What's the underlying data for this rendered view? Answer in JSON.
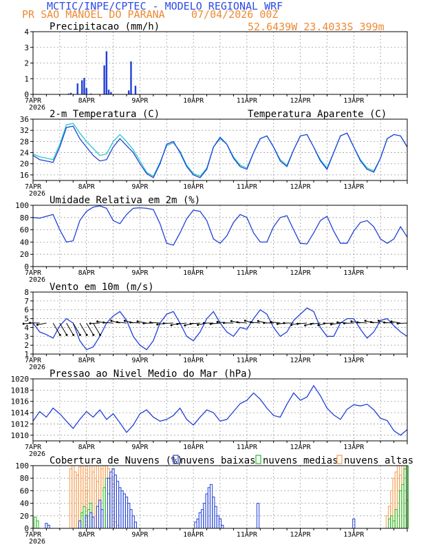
{
  "header": {
    "model_title": "MCTIC/INPE/CPTEC - MODELO REGIONAL WRF",
    "location": "PR SAO MANOEL DO PARANA",
    "run_time": "07/04/2026 00Z",
    "coords": "52.6439W 23.4033S 399m"
  },
  "colors": {
    "blue": "#1f3fd8",
    "cyan": "#22c8c8",
    "green": "#22bb22",
    "orange": "#f59a4a",
    "title_blue": "#2b4be6",
    "title_orange": "#ee8a33"
  },
  "x_axis": {
    "start_date_label": "7APR",
    "year_label": "2026",
    "days": [
      "7APR",
      "8APR",
      "9APR",
      "10APR",
      "11APR",
      "12APR",
      "13APR"
    ],
    "range_hours": [
      0,
      168
    ]
  },
  "chart_data": [
    {
      "type": "bar",
      "title": "Precipitacao (mm/h)",
      "ylim": [
        0,
        4
      ],
      "yticks": [
        0,
        1,
        2,
        3,
        4
      ],
      "x_hours": [
        16,
        17,
        20,
        22,
        23,
        24,
        26,
        32,
        33,
        34,
        35,
        43,
        44,
        46
      ],
      "values": [
        0.05,
        0.1,
        0.7,
        0.9,
        1.05,
        0.4,
        0.05,
        1.85,
        2.75,
        0.3,
        0.15,
        0.25,
        2.1,
        0.55
      ]
    },
    {
      "type": "line",
      "title": "2-m Temperatura (C)",
      "legend": "Temperatura Aparente (C)",
      "ylim": [
        14,
        36
      ],
      "yticks": [
        16,
        20,
        24,
        28,
        32,
        36
      ],
      "series": [
        {
          "color": "blue",
          "x": [
            0,
            3,
            6,
            9,
            12,
            15,
            18,
            21,
            24,
            27,
            30,
            33,
            36,
            39,
            42,
            45,
            48,
            51,
            54,
            57,
            60,
            63,
            66,
            69,
            72,
            75,
            78,
            81,
            84,
            87,
            90,
            93,
            96,
            99,
            102,
            105,
            108,
            111,
            114,
            117,
            120,
            123,
            126,
            129,
            132,
            135,
            138,
            141,
            144,
            147,
            150,
            153,
            156,
            159,
            162,
            165,
            168
          ],
          "values": [
            23,
            21.5,
            21,
            20.5,
            26,
            33,
            33.5,
            29,
            26,
            23,
            21,
            21.5,
            26,
            29,
            26.5,
            24,
            20,
            16.5,
            15,
            20,
            27,
            28,
            24,
            19,
            16,
            15,
            18,
            26,
            29.5,
            27,
            22,
            19,
            18,
            24,
            29,
            30,
            26,
            21,
            19,
            25,
            30,
            30.5,
            26,
            21,
            18,
            24,
            30,
            31,
            26,
            21,
            18,
            17,
            22,
            29,
            30.5,
            30,
            26
          ]
        },
        {
          "color": "cyan",
          "x": [
            0,
            3,
            6,
            9,
            12,
            15,
            18,
            21,
            24,
            27,
            30,
            33,
            36,
            39,
            42,
            45,
            48,
            51,
            54,
            57,
            60,
            63,
            66,
            69,
            72,
            75,
            78,
            81,
            84,
            87,
            90,
            93,
            96,
            99,
            102,
            105,
            108,
            111,
            114,
            117,
            120,
            123,
            126,
            129,
            132,
            135,
            138,
            141,
            144,
            147,
            150,
            153,
            156,
            159,
            162,
            165,
            168
          ],
          "values": [
            23.5,
            22.5,
            22,
            21.5,
            27,
            34,
            34.5,
            31,
            28,
            25.5,
            23,
            23.5,
            28,
            30.5,
            28,
            25,
            21,
            17,
            15.5,
            20.5,
            26.5,
            27.5,
            24.5,
            19.5,
            16.5,
            15.5,
            18.5,
            26,
            29,
            27,
            22.5,
            19.5,
            18.5,
            24,
            29,
            30,
            26,
            21.5,
            19.5,
            25,
            30,
            30.5,
            26,
            21.5,
            18.5,
            24,
            30,
            31,
            26,
            21.5,
            18.5,
            17.5,
            22,
            29,
            30.5,
            30,
            26
          ]
        }
      ]
    },
    {
      "type": "line",
      "title": "Umidade Relativa em 2m (%)",
      "ylim": [
        0,
        100
      ],
      "yticks": [
        0,
        20,
        40,
        60,
        80,
        100
      ],
      "series": [
        {
          "color": "blue",
          "x": [
            0,
            3,
            6,
            9,
            12,
            15,
            18,
            21,
            24,
            27,
            30,
            33,
            36,
            39,
            42,
            45,
            48,
            51,
            54,
            57,
            60,
            63,
            66,
            69,
            72,
            75,
            78,
            81,
            84,
            87,
            90,
            93,
            96,
            99,
            102,
            105,
            108,
            111,
            114,
            117,
            120,
            123,
            126,
            129,
            132,
            135,
            138,
            141,
            144,
            147,
            150,
            153,
            156,
            159,
            162,
            165,
            168
          ],
          "values": [
            80,
            79,
            82,
            85,
            60,
            40,
            42,
            75,
            90,
            97,
            99,
            95,
            75,
            70,
            85,
            95,
            96,
            95,
            93,
            70,
            38,
            35,
            55,
            78,
            92,
            90,
            75,
            45,
            38,
            50,
            72,
            85,
            80,
            55,
            40,
            40,
            65,
            80,
            83,
            60,
            38,
            37,
            55,
            75,
            82,
            58,
            38,
            38,
            58,
            72,
            75,
            65,
            45,
            38,
            45,
            65,
            48
          ]
        }
      ]
    },
    {
      "type": "line",
      "title": "Vento em 10m (m/s)",
      "ylim": [
        1,
        8
      ],
      "yticks": [
        1,
        2,
        3,
        4,
        5,
        6,
        7,
        8
      ],
      "series": [
        {
          "color": "blue",
          "x": [
            0,
            3,
            6,
            9,
            12,
            15,
            18,
            21,
            24,
            27,
            30,
            33,
            36,
            39,
            42,
            45,
            48,
            51,
            54,
            57,
            60,
            63,
            66,
            69,
            72,
            75,
            78,
            81,
            84,
            87,
            90,
            93,
            96,
            99,
            102,
            105,
            108,
            111,
            114,
            117,
            120,
            123,
            126,
            129,
            132,
            135,
            138,
            141,
            144,
            147,
            150,
            153,
            156,
            159,
            162,
            165,
            168
          ],
          "values": [
            4.5,
            3.5,
            3.2,
            2.8,
            4.2,
            5.0,
            4.5,
            2.5,
            1.5,
            1.8,
            3.0,
            4.5,
            5.3,
            5.8,
            4.8,
            3.0,
            2.0,
            1.5,
            2.5,
            4.5,
            5.5,
            5.8,
            4.5,
            3.0,
            2.5,
            3.5,
            5.0,
            5.8,
            4.5,
            3.5,
            3.0,
            4.0,
            3.8,
            5.0,
            6.0,
            5.5,
            4.0,
            3.0,
            3.5,
            4.8,
            5.5,
            6.2,
            5.8,
            4.0,
            3.0,
            3.0,
            4.5,
            5.0,
            5.0,
            3.8,
            2.8,
            3.5,
            4.8,
            5.0,
            4.2,
            3.5,
            3.0
          ]
        }
      ]
    },
    {
      "type": "line",
      "title": "Pressao ao Nivel Medio do Mar (hPa)",
      "ylim": [
        1009,
        1020
      ],
      "yticks": [
        1010,
        1012,
        1014,
        1016,
        1018,
        1020
      ],
      "series": [
        {
          "color": "blue",
          "x": [
            0,
            3,
            6,
            9,
            12,
            15,
            18,
            21,
            24,
            27,
            30,
            33,
            36,
            39,
            42,
            45,
            48,
            51,
            54,
            57,
            60,
            63,
            66,
            69,
            72,
            75,
            78,
            81,
            84,
            87,
            90,
            93,
            96,
            99,
            102,
            105,
            108,
            111,
            114,
            117,
            120,
            123,
            126,
            129,
            132,
            135,
            138,
            141,
            144,
            147,
            150,
            153,
            156,
            159,
            162,
            165,
            168
          ],
          "values": [
            1012.5,
            1014.2,
            1013.2,
            1014.8,
            1013.8,
            1012.5,
            1011.2,
            1012.8,
            1014.2,
            1013.2,
            1014.5,
            1012.8,
            1013.8,
            1012.2,
            1010.5,
            1011.8,
            1013.8,
            1014.5,
            1013.2,
            1012.5,
            1012.8,
            1013.5,
            1014.8,
            1012.8,
            1011.8,
            1013.2,
            1014.5,
            1014.0,
            1012.5,
            1012.8,
            1014.2,
            1015.6,
            1016.2,
            1017.5,
            1016.4,
            1014.8,
            1013.5,
            1013.2,
            1015.5,
            1017.5,
            1016.2,
            1016.8,
            1018.8,
            1017.0,
            1014.8,
            1013.6,
            1012.8,
            1014.6,
            1015.4,
            1015.2,
            1015.5,
            1014.5,
            1013.0,
            1012.6,
            1010.8,
            1010.0,
            1011.0
          ]
        }
      ]
    },
    {
      "type": "bar",
      "title": "Cobertura de Nuvens (%)",
      "legend": [
        "nuvens baixas",
        "nuvens medias",
        "nuvens altas"
      ],
      "ylim": [
        0,
        100
      ],
      "yticks": [
        0,
        20,
        40,
        60,
        80,
        100
      ],
      "series": [
        {
          "name": "nuvens altas",
          "color": "orange",
          "x": [
            17,
            18,
            19,
            20,
            21,
            22,
            23,
            24,
            25,
            26,
            27,
            28,
            29,
            30,
            31,
            32,
            33,
            34,
            35,
            36,
            37,
            38,
            159,
            160,
            161,
            162,
            163,
            164,
            165,
            166,
            167,
            168
          ],
          "values": [
            95,
            100,
            90,
            85,
            98,
            100,
            100,
            60,
            100,
            100,
            90,
            100,
            75,
            100,
            95,
            100,
            100,
            95,
            80,
            70,
            10,
            5,
            20,
            35,
            60,
            80,
            90,
            100,
            85,
            100,
            100,
            45
          ]
        },
        {
          "name": "nuvens medias",
          "color": "green",
          "x": [
            1,
            2,
            22,
            23,
            25,
            26,
            32,
            33,
            34,
            160,
            161,
            162,
            163,
            165,
            166,
            167,
            168
          ],
          "values": [
            18,
            12,
            25,
            35,
            30,
            40,
            65,
            80,
            55,
            15,
            20,
            12,
            30,
            60,
            70,
            95,
            100
          ]
        },
        {
          "name": "nuvens baixas",
          "color": "blue",
          "x": [
            6,
            7,
            21,
            24,
            26,
            27,
            29,
            30,
            31,
            34,
            35,
            36,
            37,
            38,
            39,
            40,
            41,
            42,
            43,
            44,
            45,
            46,
            73,
            74,
            75,
            76,
            77,
            78,
            79,
            80,
            81,
            82,
            83,
            84,
            85,
            101,
            144
          ],
          "values": [
            8,
            5,
            12,
            20,
            25,
            18,
            35,
            45,
            30,
            80,
            90,
            95,
            85,
            75,
            65,
            60,
            55,
            50,
            40,
            30,
            20,
            10,
            10,
            15,
            25,
            30,
            40,
            55,
            65,
            70,
            50,
            35,
            20,
            15,
            5,
            40,
            15
          ]
        }
      ]
    }
  ]
}
